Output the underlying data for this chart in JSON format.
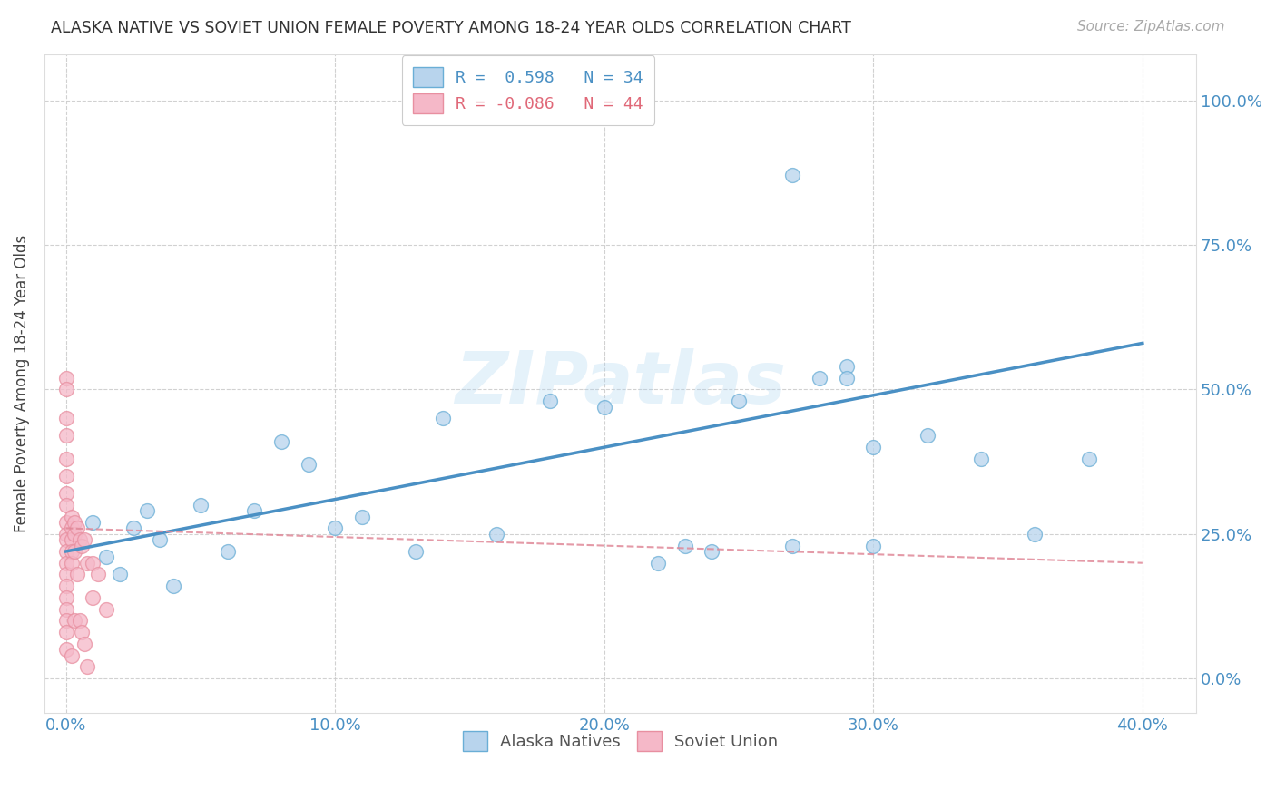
{
  "title": "ALASKA NATIVE VS SOVIET UNION FEMALE POVERTY AMONG 18-24 YEAR OLDS CORRELATION CHART",
  "source": "Source: ZipAtlas.com",
  "xlabel_ticks": [
    "0.0%",
    "10.0%",
    "20.0%",
    "30.0%",
    "40.0%"
  ],
  "xlabel_tick_vals": [
    0.0,
    0.1,
    0.2,
    0.3,
    0.4
  ],
  "ylabel": "Female Poverty Among 18-24 Year Olds",
  "ylabel_ticks": [
    "0.0%",
    "25.0%",
    "50.0%",
    "75.0%",
    "100.0%"
  ],
  "ylabel_tick_vals": [
    0.0,
    0.25,
    0.5,
    0.75,
    1.0
  ],
  "right_ylabel_ticks": [
    "100.0%",
    "75.0%",
    "50.0%",
    "25.0%",
    "0.0%"
  ],
  "xlim": [
    -0.008,
    0.42
  ],
  "ylim": [
    -0.06,
    1.08
  ],
  "alaska_R": 0.598,
  "alaska_N": 34,
  "soviet_R": -0.086,
  "soviet_N": 44,
  "alaska_color": "#b8d4ed",
  "soviet_color": "#f5b8c8",
  "alaska_edge_color": "#6aaed6",
  "soviet_edge_color": "#e88fa0",
  "alaska_line_color": "#4a90c4",
  "soviet_line_color": "#e08898",
  "watermark": "ZIPatlas",
  "legend_label_alaska": "R =  0.598   N = 34",
  "legend_label_soviet": "R = -0.086   N = 44",
  "alaska_points_x": [
    0.01,
    0.015,
    0.02,
    0.025,
    0.03,
    0.035,
    0.04,
    0.05,
    0.06,
    0.07,
    0.08,
    0.09,
    0.1,
    0.11,
    0.13,
    0.14,
    0.16,
    0.18,
    0.2,
    0.22,
    0.23,
    0.24,
    0.25,
    0.27,
    0.28,
    0.29,
    0.3,
    0.32,
    0.34,
    0.36,
    0.38,
    0.27,
    0.29,
    0.3
  ],
  "alaska_points_y": [
    0.27,
    0.21,
    0.18,
    0.26,
    0.29,
    0.24,
    0.16,
    0.3,
    0.22,
    0.29,
    0.41,
    0.37,
    0.26,
    0.28,
    0.22,
    0.45,
    0.25,
    0.48,
    0.47,
    0.2,
    0.23,
    0.22,
    0.48,
    0.23,
    0.52,
    0.54,
    0.23,
    0.42,
    0.38,
    0.25,
    0.38,
    0.87,
    0.52,
    0.4
  ],
  "soviet_points_x": [
    0.0,
    0.0,
    0.0,
    0.0,
    0.0,
    0.0,
    0.0,
    0.0,
    0.0,
    0.0,
    0.0,
    0.0,
    0.0,
    0.0,
    0.0,
    0.0,
    0.0,
    0.0,
    0.0,
    0.0,
    0.002,
    0.002,
    0.002,
    0.002,
    0.002,
    0.002,
    0.003,
    0.003,
    0.003,
    0.003,
    0.004,
    0.004,
    0.005,
    0.005,
    0.006,
    0.006,
    0.007,
    0.007,
    0.008,
    0.008,
    0.01,
    0.01,
    0.012,
    0.015
  ],
  "soviet_points_y": [
    0.52,
    0.5,
    0.45,
    0.42,
    0.38,
    0.35,
    0.32,
    0.3,
    0.27,
    0.25,
    0.24,
    0.22,
    0.2,
    0.18,
    0.16,
    0.14,
    0.12,
    0.1,
    0.08,
    0.05,
    0.28,
    0.26,
    0.24,
    0.22,
    0.2,
    0.04,
    0.27,
    0.25,
    0.22,
    0.1,
    0.26,
    0.18,
    0.24,
    0.1,
    0.23,
    0.08,
    0.24,
    0.06,
    0.2,
    0.02,
    0.2,
    0.14,
    0.18,
    0.12
  ],
  "alaska_line_x": [
    0.0,
    0.4
  ],
  "alaska_line_y": [
    0.22,
    0.58
  ],
  "soviet_line_x": [
    0.0,
    0.4
  ],
  "soviet_line_y": [
    0.26,
    0.2
  ]
}
